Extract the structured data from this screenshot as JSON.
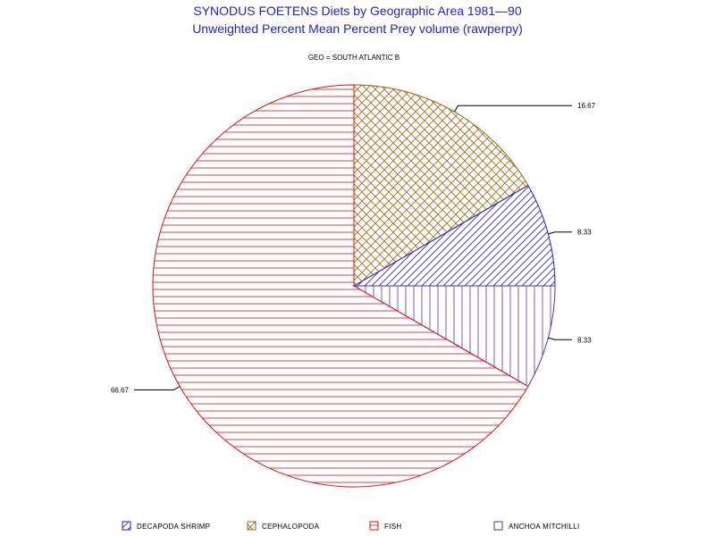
{
  "chart_data": {
    "type": "pie",
    "title": "SYNODUS FOETENS Diets by Geographic Area 1981—90",
    "subtitle": "Unweighted Percent Mean Percent Prey  volume (rawperpy)",
    "group_label": "GEO = SOUTH ATLANTIC  B",
    "legend_placement": "bottom",
    "slices": [
      {
        "name": "CEPHALOPODA",
        "value": 16.67,
        "label": "16.67",
        "color": "#a0620f",
        "pattern": "crosshatch"
      },
      {
        "name": "DECAPODA SHRIMP",
        "value": 8.33,
        "label": "8.33",
        "color": "#1f1fd0",
        "pattern": "diagonal"
      },
      {
        "name": "ANCHOA MITCHILLI",
        "value": 8.33,
        "label": "8.33",
        "color": "#5a2fa8",
        "pattern": "vertical"
      },
      {
        "name": "FISH",
        "value": 66.67,
        "label": "66.67",
        "color": "#e01010",
        "pattern": "horizontal"
      }
    ],
    "legend": [
      {
        "name": "DECAPODA SHRIMP",
        "color": "#1f1fd0",
        "pattern": "diagonal"
      },
      {
        "name": "CEPHALOPODA",
        "color": "#a0620f",
        "pattern": "crosshatch"
      },
      {
        "name": "FISH",
        "color": "#e01010",
        "pattern": "horizontal"
      },
      {
        "name": "ANCHOA MITCHILLI",
        "color": "#5a2fa8",
        "pattern": "vertical"
      }
    ]
  }
}
